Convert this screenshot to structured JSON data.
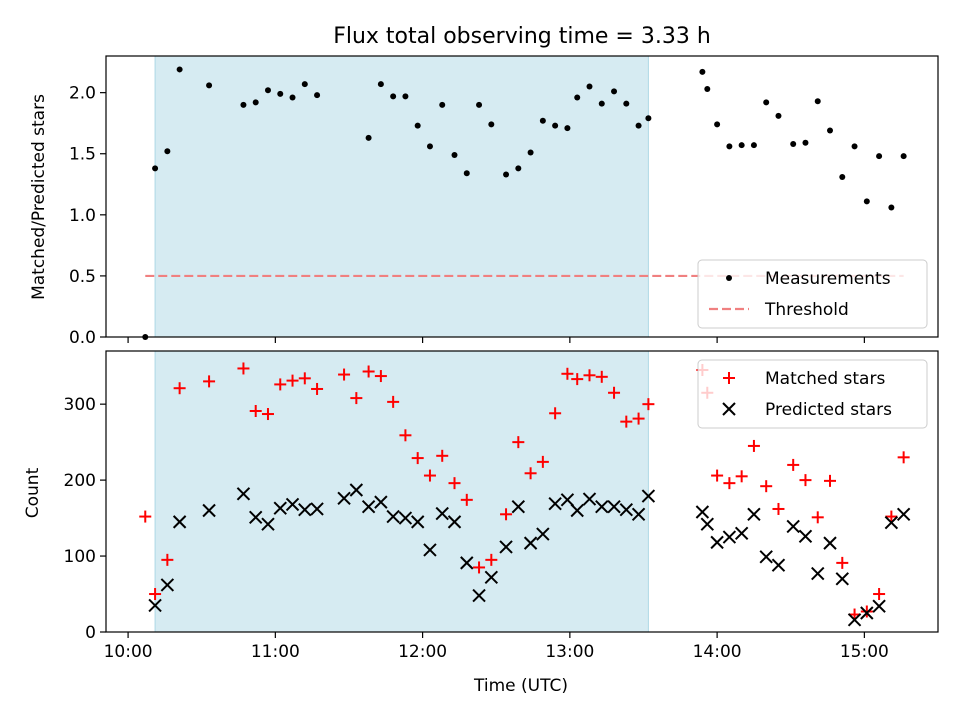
{
  "figure": {
    "title": "Flux total observing time = 3.33 h",
    "xlabel": "Time (UTC)",
    "x_ticks": [
      "10:00",
      "11:00",
      "12:00",
      "13:00",
      "14:00",
      "15:00"
    ]
  },
  "chart_data": [
    {
      "type": "scatter",
      "panel": "top",
      "ylabel": "Matched/Predicted stars",
      "ylim": [
        0,
        2.3
      ],
      "y_ticks": [
        "0.0",
        "0.5",
        "1.0",
        "1.5",
        "2.0"
      ],
      "xlim": [
        "09:51",
        "15:30"
      ],
      "shaded_span": [
        "10:11",
        "13:32"
      ],
      "shade_color": "#add8e6",
      "legend_position": "lower-right",
      "series": [
        {
          "name": "Measurements",
          "marker": "dot",
          "color": "#000000",
          "x": [
            "10:07",
            "10:11",
            "10:16",
            "10:21",
            "10:33",
            "10:47",
            "10:52",
            "10:57",
            "11:02",
            "11:07",
            "11:12",
            "11:17",
            "11:38",
            "11:43",
            "11:48",
            "11:53",
            "11:58",
            "12:03",
            "12:08",
            "12:13",
            "12:18",
            "12:23",
            "12:28",
            "12:34",
            "12:39",
            "12:44",
            "12:49",
            "12:54",
            "12:59",
            "13:03",
            "13:08",
            "13:13",
            "13:18",
            "13:23",
            "13:28",
            "13:32",
            "13:54",
            "13:56",
            "14:00",
            "14:05",
            "14:10",
            "14:15",
            "14:20",
            "14:25",
            "14:31",
            "14:36",
            "14:41",
            "14:46",
            "14:51",
            "14:56",
            "15:01",
            "15:06",
            "15:11",
            "15:16"
          ],
          "y": [
            0.0,
            1.38,
            1.52,
            2.19,
            2.06,
            1.9,
            1.92,
            2.02,
            1.99,
            1.96,
            2.07,
            1.98,
            1.63,
            2.07,
            1.97,
            1.97,
            1.73,
            1.56,
            1.9,
            1.49,
            1.34,
            1.9,
            1.74,
            1.33,
            1.38,
            1.51,
            1.77,
            1.73,
            1.71,
            1.96,
            2.05,
            1.91,
            2.01,
            1.91,
            1.73,
            1.79,
            2.17,
            2.03,
            1.74,
            1.56,
            1.57,
            1.57,
            1.92,
            1.81,
            1.58,
            1.59,
            1.93,
            1.69,
            1.31,
            1.56,
            1.11,
            1.48,
            1.06,
            1.48
          ]
        },
        {
          "name": "Threshold",
          "style": "dashed-line",
          "color": "#f08080",
          "x": [
            "10:07",
            "15:16"
          ],
          "y": [
            0.5,
            0.5
          ]
        }
      ]
    },
    {
      "type": "scatter",
      "panel": "bottom",
      "ylabel": "Count",
      "ylim": [
        0,
        370
      ],
      "y_ticks": [
        "0",
        "100",
        "200",
        "300"
      ],
      "xlim": [
        "09:51",
        "15:30"
      ],
      "shaded_span": [
        "10:11",
        "13:32"
      ],
      "shade_color": "#add8e6",
      "legend_position": "top-right",
      "series": [
        {
          "name": "Matched stars",
          "marker": "plus",
          "color": "#ff0000",
          "x": [
            "10:07",
            "10:11",
            "10:16",
            "10:21",
            "10:33",
            "10:47",
            "10:52",
            "10:57",
            "11:02",
            "11:07",
            "11:12",
            "11:17",
            "11:28",
            "11:33",
            "11:38",
            "11:43",
            "11:48",
            "11:53",
            "11:58",
            "12:03",
            "12:08",
            "12:13",
            "12:18",
            "12:23",
            "12:28",
            "12:34",
            "12:39",
            "12:44",
            "12:49",
            "12:54",
            "12:59",
            "13:03",
            "13:08",
            "13:13",
            "13:18",
            "13:23",
            "13:28",
            "13:32",
            "13:54",
            "13:56",
            "14:00",
            "14:05",
            "14:10",
            "14:15",
            "14:20",
            "14:25",
            "14:31",
            "14:36",
            "14:41",
            "14:46",
            "14:51",
            "14:56",
            "15:01",
            "15:06",
            "15:11",
            "15:16"
          ],
          "y": [
            152,
            50,
            95,
            321,
            330,
            347,
            291,
            287,
            326,
            331,
            334,
            320,
            339,
            308,
            343,
            337,
            303,
            259,
            229,
            206,
            232,
            196,
            174,
            85,
            95,
            155,
            250,
            209,
            224,
            288,
            340,
            333,
            338,
            336,
            315,
            277,
            281,
            300,
            345,
            315,
            206,
            196,
            205,
            245,
            192,
            162,
            220,
            200,
            151,
            199,
            91,
            23,
            27,
            50,
            152,
            230
          ]
        },
        {
          "name": "Predicted stars",
          "marker": "x",
          "color": "#000000",
          "x": [
            "10:11",
            "10:16",
            "10:21",
            "10:33",
            "10:47",
            "10:52",
            "10:57",
            "11:02",
            "11:07",
            "11:12",
            "11:17",
            "11:28",
            "11:33",
            "11:38",
            "11:43",
            "11:48",
            "11:53",
            "11:58",
            "12:03",
            "12:08",
            "12:13",
            "12:18",
            "12:23",
            "12:28",
            "12:34",
            "12:39",
            "12:44",
            "12:49",
            "12:54",
            "12:59",
            "13:03",
            "13:08",
            "13:13",
            "13:18",
            "13:23",
            "13:28",
            "13:32",
            "13:54",
            "13:56",
            "14:00",
            "14:05",
            "14:10",
            "14:15",
            "14:20",
            "14:25",
            "14:31",
            "14:36",
            "14:41",
            "14:46",
            "14:51",
            "14:56",
            "15:01",
            "15:06",
            "15:11",
            "15:16"
          ],
          "y": [
            35,
            62,
            145,
            160,
            182,
            151,
            142,
            163,
            168,
            161,
            162,
            176,
            187,
            165,
            171,
            152,
            150,
            145,
            108,
            156,
            145,
            91,
            48,
            72,
            112,
            165,
            117,
            129,
            169,
            174,
            160,
            175,
            165,
            165,
            161,
            155,
            179,
            158,
            142,
            118,
            125,
            130,
            155,
            99,
            88,
            139,
            126,
            77,
            117,
            70,
            16,
            25,
            34,
            144,
            155
          ]
        }
      ]
    }
  ]
}
